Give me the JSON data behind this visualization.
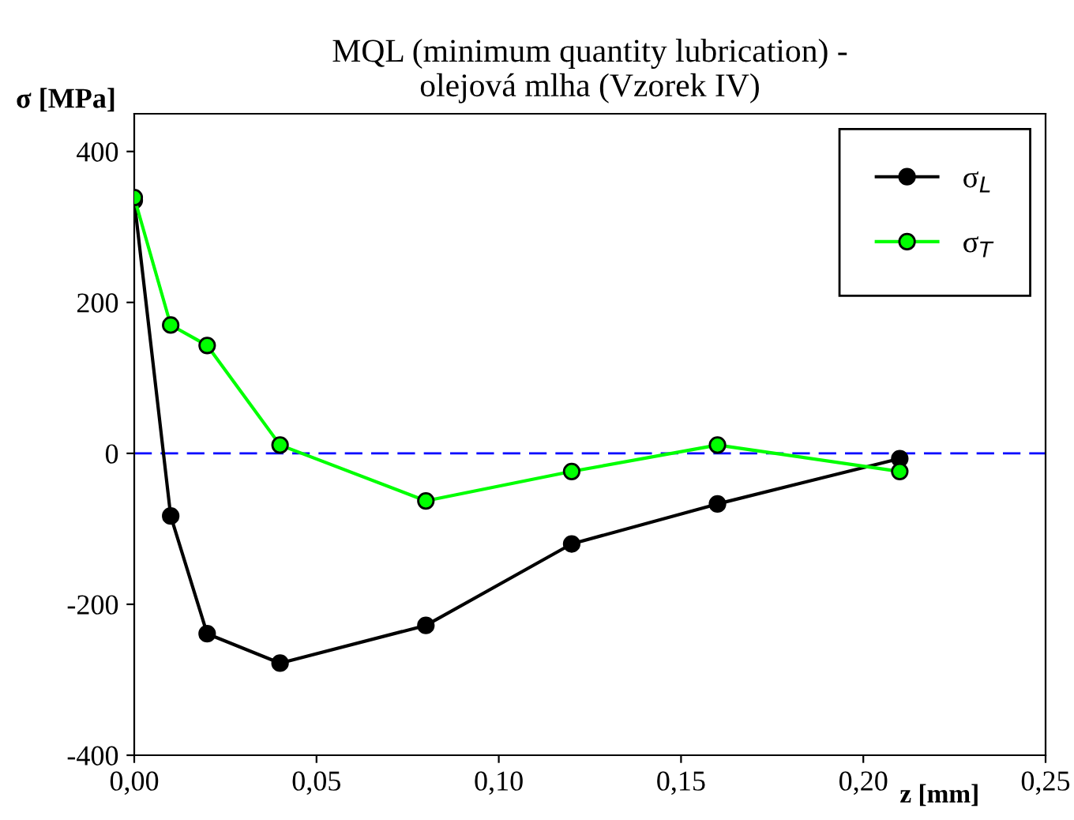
{
  "chart_data": {
    "type": "line",
    "title": "MQL (minimum quantity lubrication) -\nolejová mlha (Vzorek IV)",
    "xlabel": "z [mm]",
    "ylabel": "σ [MPa]",
    "x": [
      0,
      0.01,
      0.02,
      0.04,
      0.08,
      0.12,
      0.16,
      0.21
    ],
    "series": [
      {
        "name": "σ$_{L}$",
        "color": "#000000",
        "values": [
          335,
          -83,
          -239,
          -278,
          -228,
          -120,
          -67,
          -7
        ]
      },
      {
        "name": "σ$_{T}$",
        "color": "#00ff00",
        "values": [
          339,
          170,
          143,
          11,
          -63,
          -24,
          11,
          -24
        ]
      }
    ],
    "xlim": [
      0,
      0.25
    ],
    "ylim": [
      -400,
      450
    ],
    "xticks": [
      {
        "value": 0,
        "label": "0,00"
      },
      {
        "value": 0.05,
        "label": "0,05"
      },
      {
        "value": 0.1,
        "label": "0,10"
      },
      {
        "value": 0.15,
        "label": "0,15"
      },
      {
        "value": 0.2,
        "label": "0,20"
      },
      {
        "value": 0.25,
        "label": "0,25"
      }
    ],
    "yticks": [
      -400,
      -200,
      0,
      200,
      400
    ],
    "ref_lines": [
      {
        "axis": "y",
        "value": 0,
        "color": "#0000ff",
        "line_style": "dashed"
      }
    ],
    "legend": "top right",
    "marker": "circle",
    "line_style": "solid",
    "grid": false
  }
}
